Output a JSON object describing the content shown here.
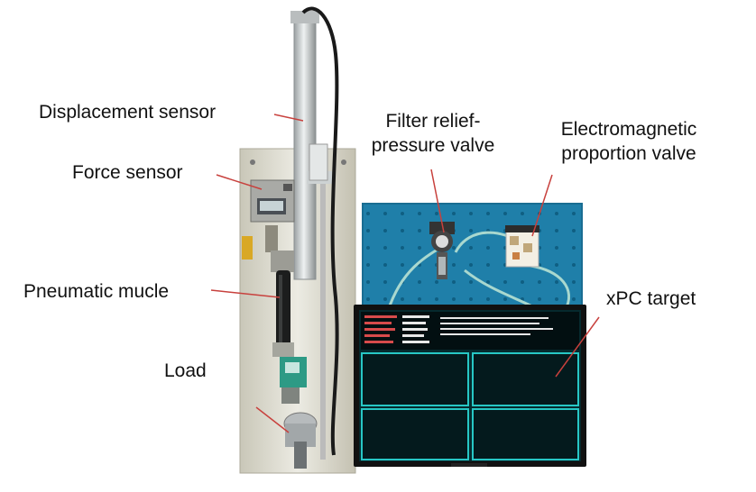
{
  "labels": {
    "displacement": "Displacement sensor",
    "force": "Force sensor",
    "pneumatic": "Pneumatic mucle",
    "load": "Load",
    "filter_line1": "Filter relief-",
    "filter_line2": "pressure valve",
    "electro_line1": "Electromagnetic",
    "electro_line2": "proportion valve",
    "xpc": "xPC target"
  },
  "colors": {
    "pegboard": "#1f7fa9",
    "screen": "#062a2e",
    "screen_lines": "#27c7c5",
    "label_line": "#c8413d",
    "frame": "#d9d6c9"
  }
}
